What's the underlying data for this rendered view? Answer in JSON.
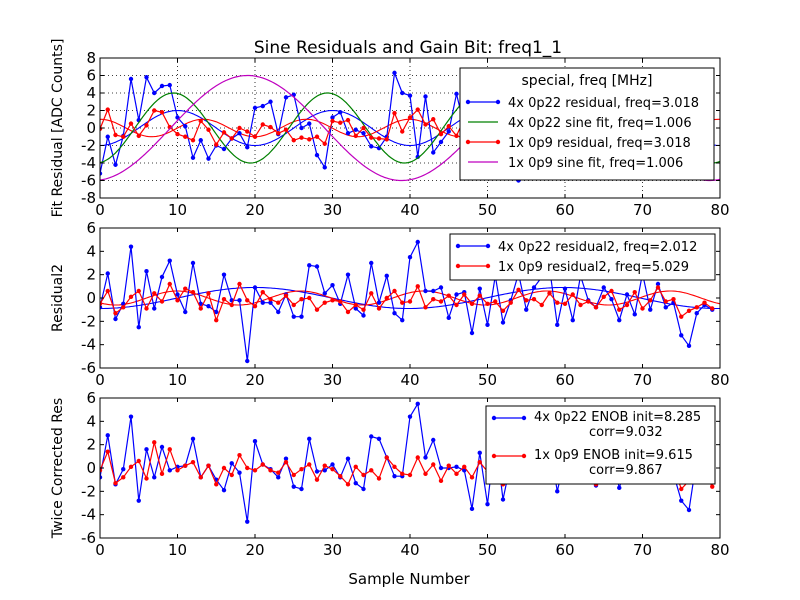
{
  "title": "Sine Residuals and Gain Bit: freq1_1",
  "xlabel": "Sample Number",
  "colors": {
    "blue": "#0000ff",
    "red": "#ff0000",
    "green": "#008000",
    "magenta": "#bf00bf",
    "frame": "#000000",
    "grid": "#000000"
  },
  "chart_data": [
    {
      "type": "line",
      "ylabel": "Fit Residual [ADC Counts]",
      "xlim": [
        0,
        80
      ],
      "ylim": [
        -8,
        8
      ],
      "xticks": [
        0,
        10,
        20,
        30,
        40,
        50,
        60,
        70,
        80
      ],
      "yticks": [
        -8,
        -6,
        -4,
        -2,
        0,
        2,
        4,
        6,
        8
      ],
      "grid": true,
      "legend_title": "special, freq [MHz]",
      "legend_position": "upper-right",
      "series": [
        {
          "name": "4x 0p22 residual, freq=3.018",
          "color": "blue",
          "markers": true,
          "values": [
            -5.2,
            -1.0,
            -4.2,
            -0.9,
            5.6,
            0.9,
            5.8,
            4.0,
            4.8,
            4.9,
            1.2,
            0.2,
            -3.4,
            -1.4,
            -3.5,
            -2.0,
            -2.4,
            -1.2,
            -0.6,
            -2.2,
            2.3,
            2.5,
            3.0,
            -0.7,
            3.5,
            3.8,
            0.0,
            0.5,
            -3.1,
            -4.5,
            1.2,
            1.8,
            -0.6,
            -0.2,
            -0.6,
            -2.1,
            -2.3,
            -1.0,
            6.3,
            4.0,
            3.7,
            -3.3,
            3.6,
            -2.8,
            -1.6,
            -0.4,
            3.9,
            0.2,
            -4.5,
            -3.8,
            -2.2,
            -1.1,
            -0.2,
            0.5,
            -6.0,
            3.6,
            1.2,
            -1.8,
            -0.9,
            -3.0,
            -0.4,
            1.1,
            -0.6,
            -0.9,
            1.3,
            0.6,
            -1.1,
            -1.7,
            -0.5,
            -0.3,
            1.4,
            1.8,
            -2.3,
            -0.6,
            -1.2,
            -3.3,
            -1.5,
            -2.1,
            -2.4,
            -2.7
          ]
        },
        {
          "name": "4x 0p22 sine fit, freq=1.006",
          "color": "green",
          "markers": false,
          "function": {
            "amplitude": 4.0,
            "period": 19.88,
            "phase_sample": 4.5,
            "offset": 0.0
          }
        },
        {
          "name": "1x 0p9 residual, freq=3.018",
          "color": "red",
          "markers": true,
          "values": [
            -0.1,
            2.1,
            -0.8,
            -1.0,
            0.5,
            -0.9,
            0.3,
            2.0,
            1.8,
            0.1,
            -0.7,
            -1.0,
            -1.4,
            0.8,
            -0.2,
            -1.9,
            -0.5,
            -1.2,
            0.0,
            -0.4,
            -1.0,
            0.4,
            0.1,
            -0.6,
            -0.2,
            -1.4,
            -1.1,
            -1.3,
            -1.0,
            -1.8,
            0.8,
            0.6,
            0.9,
            -0.9,
            0.0,
            -1.1,
            -1.2,
            -1.3,
            1.7,
            -0.4,
            1.2,
            2.1,
            0.4,
            1.0,
            -0.7,
            0.2,
            -0.9,
            1.1,
            -0.6,
            -0.4,
            0.6,
            -0.2,
            0.3,
            1.7,
            0.5,
            1.2,
            0.9,
            -0.6,
            -1.0,
            0.7,
            0.7,
            -0.4,
            0.4,
            -0.8,
            -0.6,
            -0.2,
            0.5,
            -1.0,
            0.4,
            -0.7,
            0.5,
            0.2,
            0.6,
            -0.6,
            0.1,
            1.4,
            -1.2,
            1.6,
            1.0,
            -0.4
          ]
        },
        {
          "name": "1x 0p9 sine fit, freq=1.006",
          "color": "magenta",
          "markers": false,
          "function": {
            "amplitude": 6.0,
            "period": 39.75,
            "phase_sample": 9.1,
            "offset": 0.0
          }
        }
      ],
      "extra_lines": [
        {
          "color": "blue",
          "amplitude": 2.0,
          "period": 20.0,
          "phase_sample": 5.0
        },
        {
          "color": "red",
          "amplitude": 1.0,
          "period": 13.3,
          "phase_sample": 10.0
        }
      ]
    },
    {
      "type": "line",
      "ylabel": "Residual2",
      "xlim": [
        0,
        80
      ],
      "ylim": [
        -6,
        6
      ],
      "xticks": [
        0,
        10,
        20,
        30,
        40,
        50,
        60,
        70,
        80
      ],
      "yticks": [
        -6,
        -4,
        -2,
        0,
        2,
        4,
        6
      ],
      "grid": false,
      "legend_position": "upper-right",
      "series": [
        {
          "name": "4x 0p22 residual2, freq=2.012",
          "color": "blue",
          "markers": true,
          "values": [
            -0.8,
            2.1,
            -1.8,
            -0.5,
            4.4,
            -2.5,
            2.3,
            -0.9,
            1.8,
            3.2,
            0.3,
            -1.2,
            3.0,
            -0.5,
            -0.7,
            -1.2,
            2.0,
            -0.2,
            -0.2,
            -5.4,
            0.9,
            -0.4,
            -0.4,
            -1.2,
            0.3,
            -1.6,
            -1.6,
            2.8,
            2.7,
            0.4,
            1.1,
            -0.5,
            2.0,
            -0.9,
            -1.5,
            3.0,
            -0.4,
            1.9,
            -1.3,
            -1.9,
            3.5,
            4.8,
            0.6,
            0.6,
            0.9,
            -1.7,
            0.3,
            0.5,
            -3.0,
            0.8,
            -2.3,
            1.9,
            -2.1,
            -0.2,
            2.1,
            -1.0,
            0.9,
            1.8,
            2.6,
            -2.3,
            0.8,
            -1.9,
            1.9,
            -0.2,
            -0.8,
            0.9,
            -0.1,
            -1.9,
            0.3,
            -1.4,
            2.1,
            -1.0,
            1.2,
            -0.8,
            -0.4,
            -3.2,
            -4.1,
            -1.3,
            -0.6,
            -1.0
          ]
        },
        {
          "name": "1x 0p9 residual2, freq=5.029",
          "color": "red",
          "markers": true,
          "values": [
            -0.5,
            0.6,
            -1.3,
            -0.8,
            0.1,
            0.6,
            -0.9,
            0.4,
            -0.3,
            1.2,
            -0.2,
            0.8,
            0.5,
            -0.9,
            0.4,
            -1.9,
            -0.1,
            -0.6,
            1.2,
            -0.2,
            -0.7,
            0.5,
            -0.1,
            -0.4,
            0.2,
            -0.6,
            -0.1,
            0.0,
            -1.0,
            -0.4,
            -0.2,
            -0.3,
            -1.2,
            -0.6,
            -1.0,
            0.4,
            -0.9,
            0.0,
            0.6,
            -0.4,
            -0.3,
            1.0,
            -0.8,
            -0.1,
            -0.3,
            0.2,
            -0.6,
            0.3,
            -0.5,
            0.2,
            -0.5,
            -0.3,
            -1.1,
            -0.4,
            0.7,
            -0.2,
            -0.1,
            -0.6,
            0.4,
            -0.4,
            -0.5,
            0.3,
            -0.6,
            -0.3,
            -0.8,
            0.1,
            0.6,
            -1.0,
            -0.6,
            0.5,
            -0.9,
            -0.2,
            0.9,
            -0.3,
            -0.1,
            -1.6,
            -1.1,
            -0.8,
            -0.4,
            -0.9
          ]
        }
      ],
      "extra_lines": [
        {
          "color": "blue",
          "amplitude": 0.9,
          "period": 39.8,
          "phase_sample": 10.0
        },
        {
          "color": "red",
          "amplitude": 0.6,
          "period": 15.9,
          "phase_sample": 6.0
        }
      ]
    },
    {
      "type": "line",
      "ylabel": "Twice Corrected Res",
      "xlim": [
        0,
        80
      ],
      "ylim": [
        -6,
        6
      ],
      "xticks": [
        0,
        10,
        20,
        30,
        40,
        50,
        60,
        70,
        80
      ],
      "yticks": [
        -6,
        -4,
        -2,
        0,
        2,
        4,
        6
      ],
      "grid": false,
      "legend_position": "upper-right",
      "series": [
        {
          "name": "4x 0p22 ENOB init=8.285",
          "name_line2": "corr=9.032",
          "color": "blue",
          "markers": true,
          "values": [
            -0.8,
            2.8,
            -1.4,
            -0.1,
            4.4,
            -2.8,
            1.6,
            -0.8,
            1.8,
            -0.2,
            0.1,
            0.2,
            2.5,
            -0.8,
            0.2,
            -1.0,
            -1.9,
            0.4,
            -0.4,
            -4.6,
            2.3,
            0.3,
            -0.1,
            -0.8,
            0.8,
            -1.6,
            -1.8,
            2.5,
            -0.3,
            -0.2,
            0.3,
            -0.8,
            0.8,
            -1.3,
            -1.8,
            2.7,
            2.5,
            0.9,
            -0.7,
            -0.7,
            4.4,
            5.5,
            0.9,
            2.4,
            0.0,
            0.0,
            0.1,
            -0.2,
            -3.5,
            1.3,
            -3.1,
            2.8,
            -2.7,
            0.5,
            3.3,
            0.5,
            0.4,
            1.4,
            2.0,
            -2.0,
            0.9,
            -0.7,
            1.5,
            -0.1,
            -1.5,
            0.6,
            0.9,
            -1.7,
            0.4,
            -1.0,
            1.4,
            -0.2,
            1.4,
            -0.3,
            -0.5,
            -2.8,
            -3.6,
            0.8,
            -0.3,
            -0.7
          ]
        },
        {
          "name": "1x 0p9 ENOB init=9.615",
          "name_line2": "corr=9.867",
          "color": "red",
          "markers": true,
          "values": [
            -0.2,
            1.4,
            -1.3,
            -0.8,
            0.1,
            0.6,
            -0.9,
            2.2,
            -0.5,
            1.6,
            -0.2,
            0.2,
            0.5,
            -0.8,
            0.2,
            -1.4,
            0.0,
            -0.6,
            1.1,
            0.0,
            -0.2,
            0.3,
            -0.2,
            -0.4,
            0.5,
            -0.6,
            -0.1,
            0.3,
            -1.0,
            0.2,
            -0.1,
            -0.7,
            -1.4,
            0.1,
            -0.6,
            -0.2,
            -0.9,
            0.9,
            0.1,
            -0.5,
            -0.6,
            0.9,
            -0.5,
            0.3,
            -1.1,
            0.2,
            -0.5,
            0.1,
            -0.8,
            0.5,
            -0.3,
            0.0,
            -1.4,
            -0.3,
            0.8,
            0.4,
            -0.2,
            -0.6,
            0.8,
            -0.3,
            -0.4,
            0.9,
            -0.6,
            -0.5,
            -1.4,
            0.3,
            0.8,
            -1.2,
            -0.6,
            0.5,
            -0.2,
            0.3,
            0.8,
            -0.5,
            0.1,
            -1.8,
            -1.1,
            -0.8,
            -0.4,
            -1.6
          ]
        }
      ],
      "extra_lines": []
    }
  ]
}
